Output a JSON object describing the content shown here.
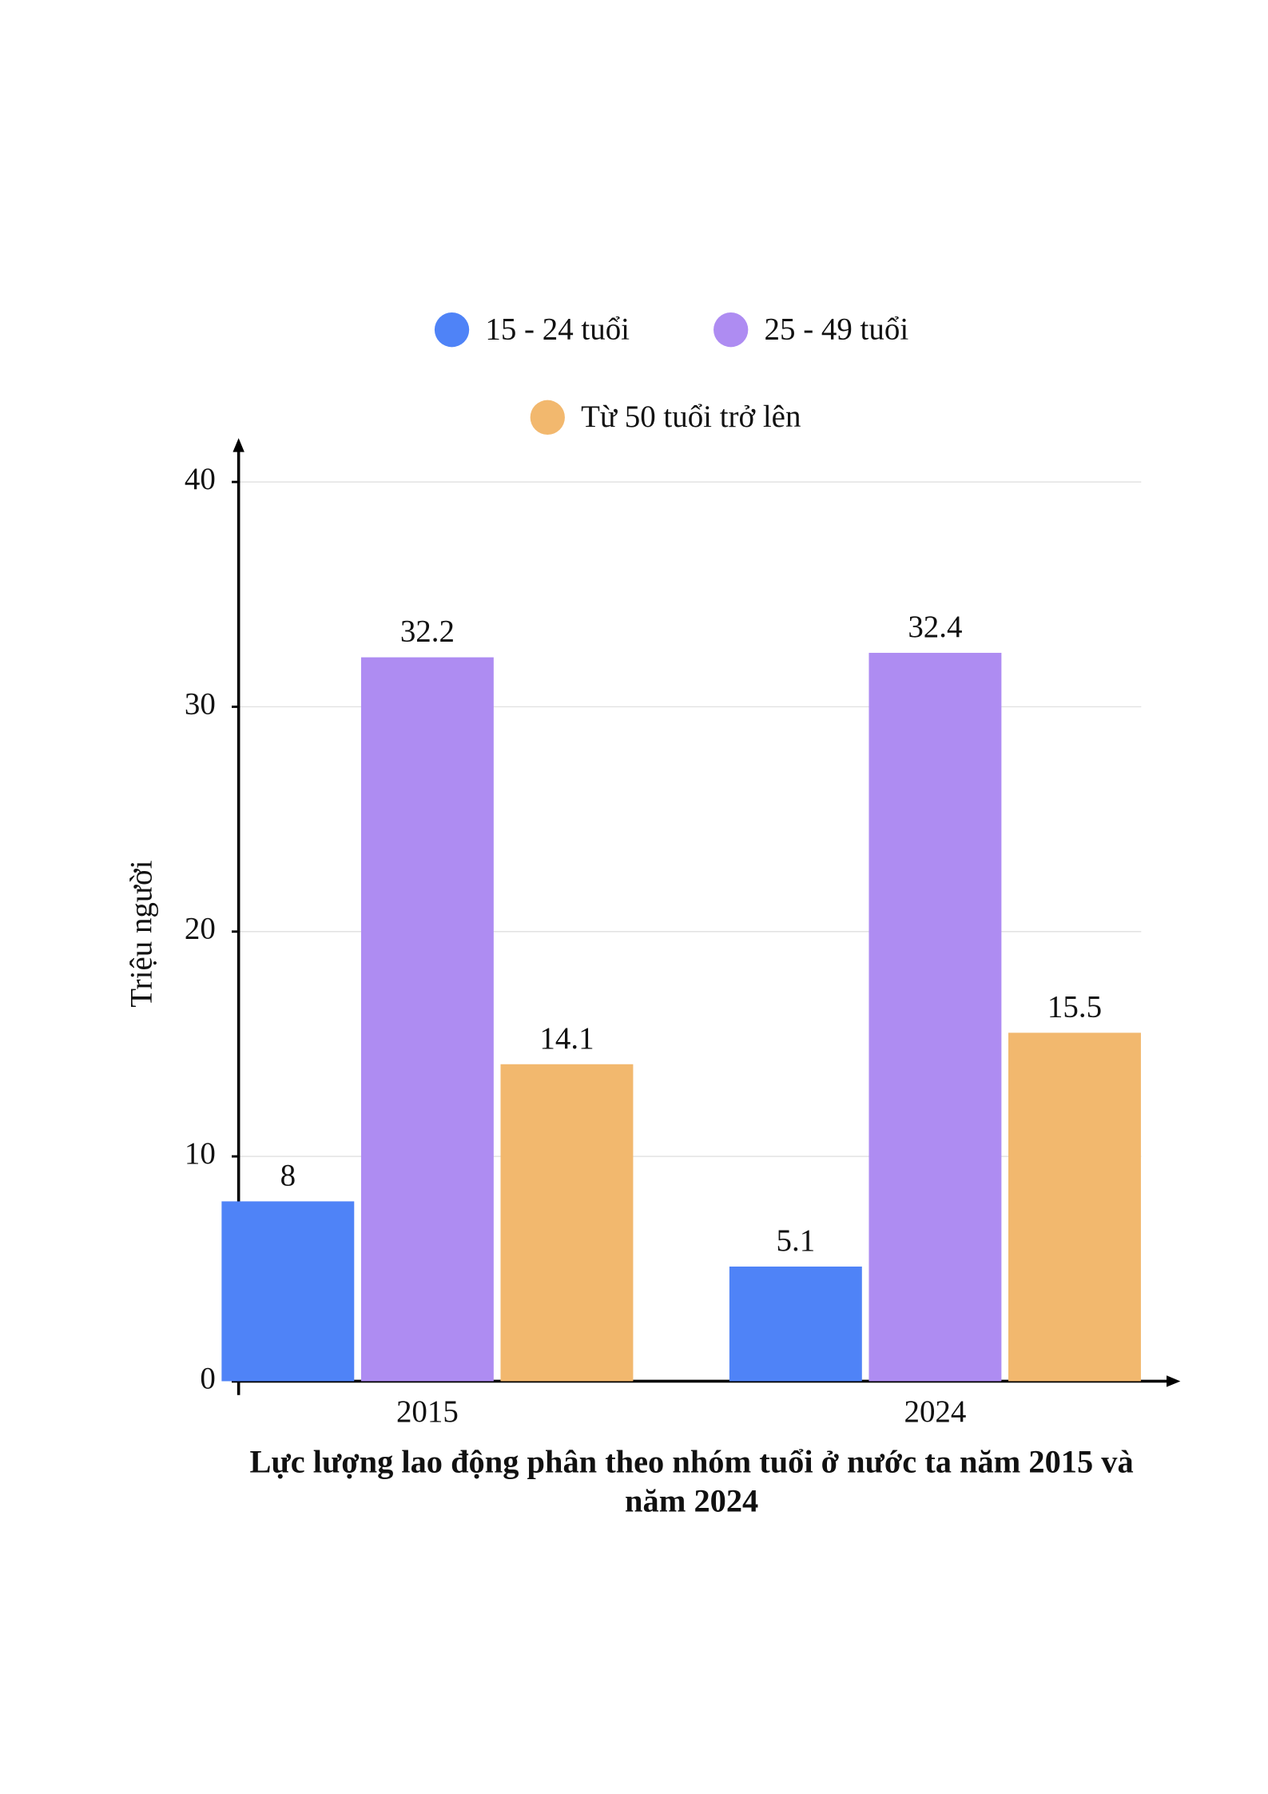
{
  "chart_data": {
    "type": "bar",
    "title": "Lực lượng lao động phân theo nhóm tuổi ở nước ta năm 2015 và năm 2024",
    "y_label": "Triệu người",
    "categories": [
      "2015",
      "2024"
    ],
    "series": [
      {
        "name": "15 - 24 tuổi",
        "color": "#4f83f7",
        "values": [
          8,
          5.1
        ]
      },
      {
        "name": "25 - 49 tuổi",
        "color": "#ae8cf2",
        "values": [
          32.2,
          32.4
        ]
      },
      {
        "name": "Từ 50 tuổi trở lên",
        "color": "#f2b86e",
        "values": [
          14.1,
          15.5
        ]
      }
    ],
    "ylim": [
      0,
      40
    ],
    "yticks": [
      0,
      10,
      20,
      30,
      40
    ],
    "grid": true
  }
}
